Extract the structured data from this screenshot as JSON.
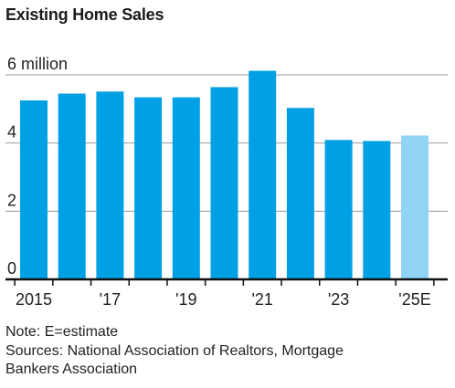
{
  "chart_data": {
    "type": "bar",
    "title": "Existing Home Sales",
    "unit_label": "6 million",
    "y_tick_labels": [
      "0",
      "2",
      "4"
    ],
    "ylim": [
      0,
      6
    ],
    "grid": true,
    "x_tick_labels": [
      "2015",
      "'17",
      "'19",
      "'21",
      "'23",
      "'25E"
    ],
    "categories": [
      "2015",
      "2016",
      "2017",
      "2018",
      "2019",
      "2020",
      "2021",
      "2022",
      "2023",
      "2024",
      "2025E"
    ],
    "values": [
      5.25,
      5.45,
      5.51,
      5.34,
      5.34,
      5.64,
      6.12,
      5.03,
      4.09,
      4.06,
      4.22
    ],
    "estimate_flags": [
      false,
      false,
      false,
      false,
      false,
      false,
      false,
      false,
      false,
      false,
      true
    ],
    "colors": {
      "actual": "#00a1e4",
      "estimate": "#8fd3f5"
    }
  },
  "notes": {
    "note": "Note: E=estimate",
    "sources": "Sources: National Association of Realtors, Mortgage Bankers Association"
  }
}
